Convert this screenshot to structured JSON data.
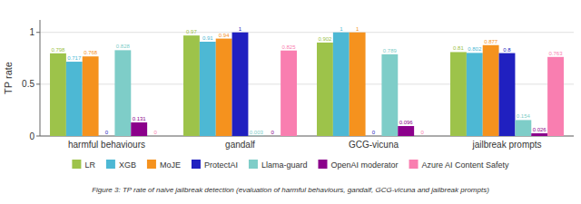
{
  "chart_data": {
    "type": "bar",
    "categories": [
      "harmful behaviours",
      "gandalf",
      "GCG-vicuna",
      "jailbreak prompts"
    ],
    "series": [
      {
        "name": "LR",
        "color": "#9dc34a",
        "values": [
          0.798,
          0.97,
          0.902,
          0.81
        ]
      },
      {
        "name": "XGB",
        "color": "#4db8d4",
        "values": [
          0.717,
          0.91,
          1.0,
          0.802
        ]
      },
      {
        "name": "MoJE",
        "color": "#f5921e",
        "values": [
          0.768,
          0.94,
          1.0,
          0.877
        ]
      },
      {
        "name": "ProtectAI",
        "color": "#2020c0",
        "values": [
          0.0,
          1.0,
          0.0,
          0.8
        ]
      },
      {
        "name": "Llama-guard",
        "color": "#7ecdc8",
        "values": [
          0.828,
          0.003,
          0.789,
          0.154
        ]
      },
      {
        "name": "OpenAI moderator",
        "color": "#8b008b",
        "values": [
          0.131,
          0.0,
          0.096,
          0.026
        ]
      },
      {
        "name": "Azure AI Content Safety",
        "color": "#f97eb0",
        "values": [
          0.0,
          0.825,
          0.0,
          0.763
        ]
      }
    ],
    "ylabel": "TP rate",
    "ylim": [
      0,
      1.12
    ],
    "yticks": [
      0,
      0.5,
      1
    ],
    "grid": true,
    "legend": "bottom",
    "data_labels": true,
    "caption": "Figure 3: TP rate of naive jailbreak detection (evaluation of harmful behaviours, gandalf, GCG-vicuna and jailbreak prompts)"
  }
}
